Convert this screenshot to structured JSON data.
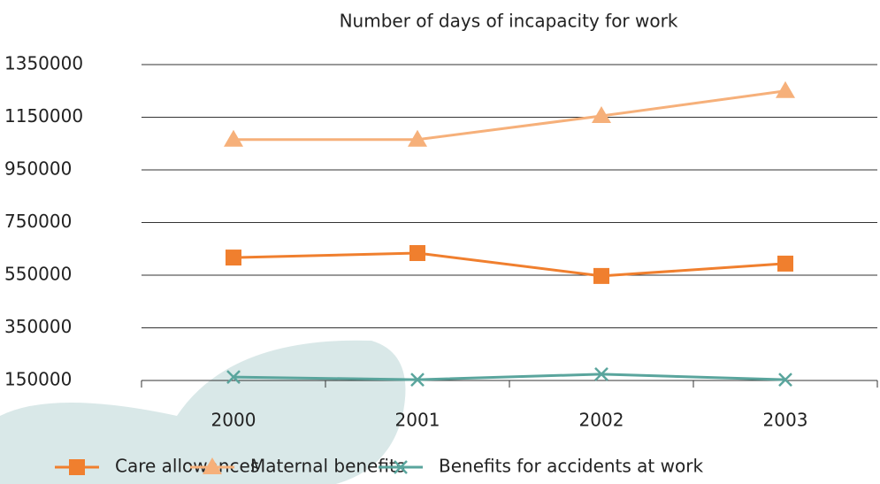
{
  "chart_data": {
    "type": "line",
    "title": "Number of days of incapacity for work",
    "categories": [
      "2000",
      "2001",
      "2002",
      "2003"
    ],
    "series": [
      {
        "name": "Care allowances",
        "color": "#f07f2e",
        "marker": "square",
        "values": [
          617000,
          634000,
          547000,
          594000
        ]
      },
      {
        "name": "Maternal benefits",
        "color": "#f6b07a",
        "marker": "triangle",
        "values": [
          1065000,
          1065000,
          1155000,
          1250000
        ]
      },
      {
        "name": "Benefits for accidents at work",
        "color": "#5aa59d",
        "marker": "x",
        "values": [
          163000,
          153000,
          174000,
          153000
        ]
      }
    ],
    "ylim": [
      150000,
      1350000
    ],
    "yticks": [
      150000,
      350000,
      550000,
      750000,
      950000,
      1150000,
      1350000
    ],
    "grid": true,
    "legend": "bottom"
  }
}
